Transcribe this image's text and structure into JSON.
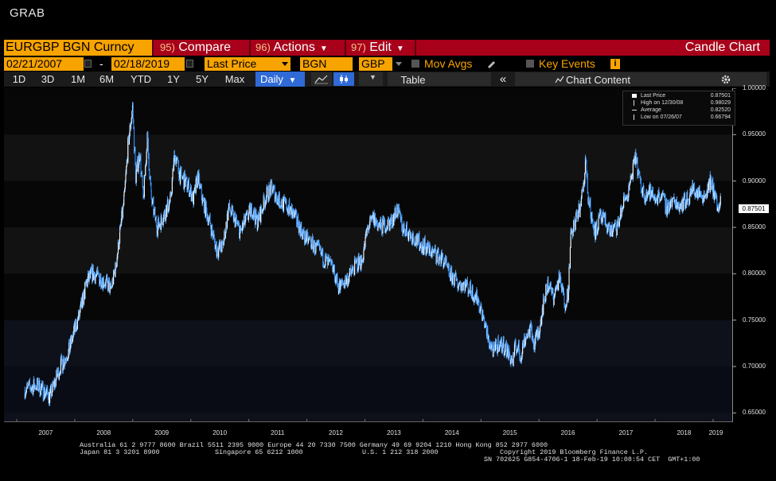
{
  "window_title": "GRAB",
  "toolbar": {
    "ticker": "EURGBP BGN Curncy",
    "compare_num": "95)",
    "compare_label": "Compare",
    "actions_num": "96)",
    "actions_label": "Actions",
    "edit_num": "97)",
    "edit_label": "Edit",
    "chart_type": "Candle Chart"
  },
  "settings": {
    "start_date": "02/21/2007",
    "end_date": "02/18/2019",
    "dash": "-",
    "price_field": "Last Price",
    "source": "BGN",
    "currency": "GBP",
    "mov_avgs": "Mov Avgs",
    "key_events": "Key Events",
    "info": "i"
  },
  "periods": [
    "1D",
    "3D",
    "1M",
    "6M",
    "YTD",
    "1Y",
    "5Y",
    "Max"
  ],
  "frequency": "Daily",
  "table_label": "Table",
  "collapse_glyph": "«",
  "chart_content_label": "Chart Content",
  "legend": [
    {
      "label": "Last Price",
      "value": "0.87501"
    },
    {
      "label": "High on 12/30/08",
      "value": "0.98029"
    },
    {
      "label": "Average",
      "value": "0.82520"
    },
    {
      "label": "Low on 07/26/07",
      "value": "0.66794"
    }
  ],
  "last_value_tag": "0.87501",
  "footer": {
    "line1": "Australia 61 2 9777 8600 Brazil 5511 2395 9000 Europe 44 20 7330 7500 Germany 49 69 9204 1210 Hong Kong 852 2977 6000",
    "line2a": "Japan 81 3 3201 8900",
    "line2b": "Singapore 65 6212 1000",
    "line2c": "U.S. 1 212 318 2000",
    "line2d": "Copyright 2019 Bloomberg Finance L.P.",
    "line3": "SN 702625 G854-4706-1 18-Feb-19 10:08:54 CET  GMT+1:00"
  },
  "colors": {
    "ticker_bg": "#f7a300",
    "header_bg": "#a8001a",
    "series": "#4aa3ff",
    "selected": "#2f6ad6"
  },
  "chart_data": {
    "type": "line",
    "title": "",
    "xlabel": "",
    "ylabel": "",
    "ylim": [
      0.64,
      1.0
    ],
    "yticks": [
      "0.65000",
      "0.70000",
      "0.75000",
      "0.80000",
      "0.85000",
      "0.90000",
      "0.95000",
      "1.00000"
    ],
    "xticks": [
      "2007",
      "2008",
      "2009",
      "2010",
      "2011",
      "2012",
      "2013",
      "2014",
      "2015",
      "2016",
      "2017",
      "2018",
      "2019"
    ],
    "x_start": 2007.14,
    "x_end": 2019.13,
    "series": [
      {
        "points": [
          [
            2007.14,
            0.675
          ],
          [
            2007.35,
            0.68
          ],
          [
            2007.57,
            0.668
          ],
          [
            2007.75,
            0.7
          ],
          [
            2007.9,
            0.717
          ],
          [
            2008.0,
            0.74
          ],
          [
            2008.1,
            0.76
          ],
          [
            2008.2,
            0.79
          ],
          [
            2008.3,
            0.8
          ],
          [
            2008.45,
            0.795
          ],
          [
            2008.55,
            0.79
          ],
          [
            2008.62,
            0.783
          ],
          [
            2008.7,
            0.805
          ],
          [
            2008.78,
            0.845
          ],
          [
            2008.85,
            0.88
          ],
          [
            2008.92,
            0.94
          ],
          [
            2008.995,
            0.98
          ],
          [
            2009.05,
            0.905
          ],
          [
            2009.12,
            0.93
          ],
          [
            2009.18,
            0.88
          ],
          [
            2009.25,
            0.945
          ],
          [
            2009.32,
            0.88
          ],
          [
            2009.42,
            0.85
          ],
          [
            2009.55,
            0.865
          ],
          [
            2009.65,
            0.88
          ],
          [
            2009.72,
            0.93
          ],
          [
            2009.82,
            0.905
          ],
          [
            2009.95,
            0.895
          ],
          [
            2010.05,
            0.88
          ],
          [
            2010.12,
            0.905
          ],
          [
            2010.2,
            0.88
          ],
          [
            2010.35,
            0.85
          ],
          [
            2010.45,
            0.825
          ],
          [
            2010.55,
            0.83
          ],
          [
            2010.65,
            0.87
          ],
          [
            2010.75,
            0.86
          ],
          [
            2010.85,
            0.845
          ],
          [
            2010.95,
            0.858
          ],
          [
            2011.05,
            0.87
          ],
          [
            2011.15,
            0.855
          ],
          [
            2011.3,
            0.885
          ],
          [
            2011.4,
            0.893
          ],
          [
            2011.5,
            0.88
          ],
          [
            2011.6,
            0.875
          ],
          [
            2011.7,
            0.87
          ],
          [
            2011.85,
            0.855
          ],
          [
            2011.95,
            0.84
          ],
          [
            2012.05,
            0.835
          ],
          [
            2012.2,
            0.825
          ],
          [
            2012.3,
            0.815
          ],
          [
            2012.45,
            0.805
          ],
          [
            2012.55,
            0.785
          ],
          [
            2012.7,
            0.795
          ],
          [
            2012.85,
            0.81
          ],
          [
            2012.95,
            0.815
          ],
          [
            2013.05,
            0.85
          ],
          [
            2013.15,
            0.86
          ],
          [
            2013.25,
            0.85
          ],
          [
            2013.45,
            0.855
          ],
          [
            2013.55,
            0.87
          ],
          [
            2013.65,
            0.85
          ],
          [
            2013.78,
            0.843
          ],
          [
            2013.9,
            0.835
          ],
          [
            2014.0,
            0.83
          ],
          [
            2014.12,
            0.825
          ],
          [
            2014.25,
            0.82
          ],
          [
            2014.35,
            0.815
          ],
          [
            2014.45,
            0.8
          ],
          [
            2014.6,
            0.79
          ],
          [
            2014.72,
            0.79
          ],
          [
            2014.85,
            0.78
          ],
          [
            2014.95,
            0.772
          ],
          [
            2015.05,
            0.75
          ],
          [
            2015.12,
            0.73
          ],
          [
            2015.22,
            0.715
          ],
          [
            2015.3,
            0.725
          ],
          [
            2015.42,
            0.72
          ],
          [
            2015.55,
            0.705
          ],
          [
            2015.6,
            0.725
          ],
          [
            2015.68,
            0.71
          ],
          [
            2015.75,
            0.73
          ],
          [
            2015.85,
            0.74
          ],
          [
            2015.92,
            0.725
          ],
          [
            2016.0,
            0.74
          ],
          [
            2016.08,
            0.77
          ],
          [
            2016.15,
            0.79
          ],
          [
            2016.25,
            0.775
          ],
          [
            2016.35,
            0.795
          ],
          [
            2016.45,
            0.77
          ],
          [
            2016.5,
            0.78
          ],
          [
            2016.55,
            0.84
          ],
          [
            2016.62,
            0.855
          ],
          [
            2016.7,
            0.87
          ],
          [
            2016.78,
            0.9
          ],
          [
            2016.8,
            0.93
          ],
          [
            2016.85,
            0.88
          ],
          [
            2016.92,
            0.858
          ],
          [
            2016.97,
            0.845
          ],
          [
            2017.05,
            0.86
          ],
          [
            2017.15,
            0.855
          ],
          [
            2017.25,
            0.845
          ],
          [
            2017.35,
            0.85
          ],
          [
            2017.45,
            0.875
          ],
          [
            2017.55,
            0.89
          ],
          [
            2017.62,
            0.912
          ],
          [
            2017.67,
            0.925
          ],
          [
            2017.75,
            0.895
          ],
          [
            2017.82,
            0.885
          ],
          [
            2017.9,
            0.888
          ],
          [
            2018.0,
            0.882
          ],
          [
            2018.1,
            0.885
          ],
          [
            2018.2,
            0.872
          ],
          [
            2018.3,
            0.878
          ],
          [
            2018.45,
            0.875
          ],
          [
            2018.55,
            0.88
          ],
          [
            2018.65,
            0.892
          ],
          [
            2018.75,
            0.886
          ],
          [
            2018.85,
            0.885
          ],
          [
            2018.95,
            0.898
          ],
          [
            2019.02,
            0.888
          ],
          [
            2019.08,
            0.87
          ],
          [
            2019.13,
            0.875
          ]
        ]
      }
    ]
  }
}
